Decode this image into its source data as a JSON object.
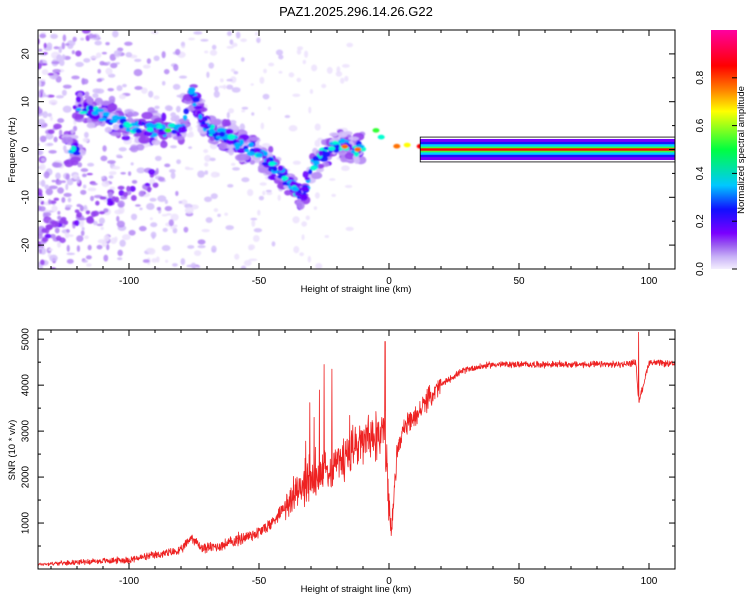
{
  "title": "PAZ1.2025.296.14.26.G22",
  "colors": {
    "snr_line": "#ee2222",
    "carrier_red": "#e8001a",
    "frame": "#000000"
  },
  "chart_data": [
    {
      "type": "heatmap",
      "name": "spectrogram",
      "xlabel": "Height of straight line (km)",
      "ylabel": "Frequency (Hz)",
      "xlim": [
        -135,
        110
      ],
      "ylim": [
        -25,
        25
      ],
      "xticks": [
        -100,
        -50,
        0,
        50,
        100
      ],
      "yticks": [
        -20,
        -10,
        0,
        10,
        20
      ],
      "ridge": {
        "description_points": [
          {
            "x": -120,
            "y": 9
          },
          {
            "x": -110,
            "y": 7
          },
          {
            "x": -100,
            "y": 5
          },
          {
            "x": -90,
            "y": 4
          },
          {
            "x": -80,
            "y": 4
          },
          {
            "x": -76,
            "y": 12
          },
          {
            "x": -70,
            "y": 4
          },
          {
            "x": -62,
            "y": 3
          },
          {
            "x": -58,
            "y": 1
          },
          {
            "x": -52,
            "y": 0
          },
          {
            "x": -45,
            "y": -3
          },
          {
            "x": -40,
            "y": -6
          },
          {
            "x": -33,
            "y": -10
          },
          {
            "x": -30,
            "y": -4
          },
          {
            "x": -25,
            "y": -1
          },
          {
            "x": -20,
            "y": 1
          },
          {
            "x": -12,
            "y": 0
          },
          {
            "x": -5,
            "y": 4
          },
          {
            "x": 0,
            "y": 0.5
          },
          {
            "x": 8,
            "y": 1
          },
          {
            "x": 20,
            "y": 0
          },
          {
            "x": 110,
            "y": 0
          }
        ]
      },
      "colorbar": {
        "label": "Normalized spectral amplitude",
        "range": [
          0,
          1
        ],
        "ticks": [
          0,
          0.2,
          0.4,
          0.6,
          0.8
        ],
        "tick_labels": [
          "0.0",
          "0.2",
          "0.4",
          "0.6",
          "0.8"
        ],
        "colors": [
          "#f4eefe",
          "#c9b3f7",
          "#9a5cf0",
          "#7a00ff",
          "#1010ff",
          "#00c8ff",
          "#00ff40",
          "#ffff00",
          "#ff8000",
          "#ff0000",
          "#ff00a0"
        ]
      }
    },
    {
      "type": "line",
      "name": "snr",
      "xlabel": "Height of straight line (km)",
      "ylabel": "SNR (10 * v/v)",
      "xlim": [
        -135,
        110
      ],
      "ylim": [
        0,
        5200
      ],
      "xticks": [
        -100,
        -50,
        0,
        50,
        100
      ],
      "yticks": [
        1000,
        2000,
        3000,
        4000,
        5000
      ],
      "series": [
        {
          "name": "SNR",
          "x": [
            -135,
            -120,
            -100,
            -90,
            -80,
            -76,
            -72,
            -65,
            -55,
            -50,
            -45,
            -40,
            -35,
            -30,
            -25,
            -20,
            -15,
            -10,
            -5,
            -2,
            0,
            1,
            3,
            5,
            10,
            15,
            20,
            25,
            30,
            40,
            50,
            60,
            70,
            80,
            90,
            95,
            96,
            100,
            110
          ],
          "y": [
            100,
            150,
            200,
            300,
            400,
            700,
            450,
            500,
            700,
            800,
            1000,
            1400,
            1700,
            1900,
            2100,
            2300,
            2500,
            2800,
            2900,
            3000,
            1500,
            800,
            2500,
            3000,
            3300,
            3700,
            4000,
            4200,
            4350,
            4450,
            4450,
            4450,
            4450,
            4450,
            4450,
            4500,
            3600,
            4500,
            4450
          ],
          "spikes": [
            {
              "x": -25,
              "y": 4450
            },
            {
              "x": -22,
              "y": 4350
            },
            {
              "x": -1.5,
              "y": 4950
            },
            {
              "x": 96,
              "y": 5150
            }
          ],
          "color": "#ee2222"
        }
      ]
    }
  ]
}
